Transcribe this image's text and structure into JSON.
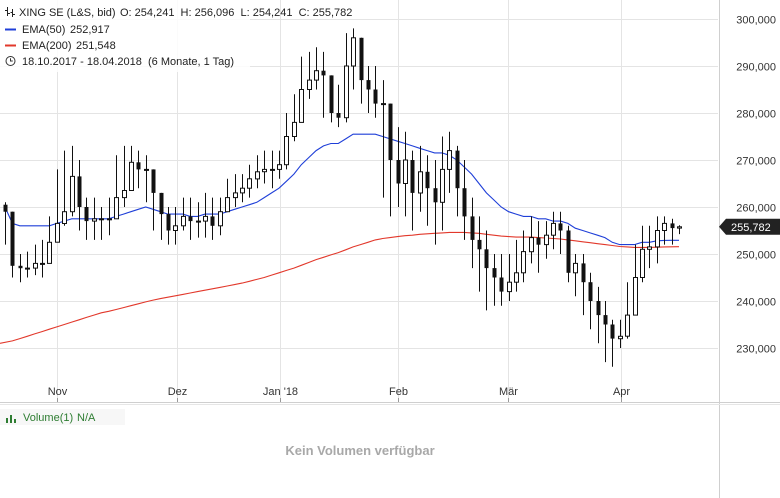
{
  "legend": {
    "instrument": "XING SE (L&S, bid)",
    "ohlc": "O: 254,241  H: 256,096  L: 254,241  C: 255,782",
    "ema50_label": "EMA(50)",
    "ema50_value": "252,917",
    "ema200_label": "EMA(200)",
    "ema200_value": "251,548",
    "range": "18.10.2017 - 18.04.2018",
    "period": "(6 Monate, 1 Tag)"
  },
  "last_price_tag": "255,782",
  "volume_panel": {
    "label": "Volume(1)",
    "value": "N/A",
    "message": "Kein Volumen verfügbar"
  },
  "colors": {
    "ema50": "#1f3fd8",
    "ema200": "#e2382b",
    "candle": "#111111",
    "grid": "#e4e4e4",
    "volume_label": "#2e7d32"
  },
  "chart_data": {
    "type": "candlestick",
    "title": "XING SE (L&S, bid)",
    "x_tick_labels": [
      "Nov",
      "Dez",
      "Jan '18",
      "Feb",
      "Mär",
      "Apr"
    ],
    "y_tick_labels": [
      "230,000",
      "240,000",
      "250,000",
      "260,000",
      "270,000",
      "280,000",
      "290,000",
      "300,000"
    ],
    "ylim": [
      222000,
      302000
    ],
    "date_range": [
      "2017-10-18",
      "2018-04-18"
    ],
    "grid": true,
    "series": [
      {
        "name": "XING SE (L&S, bid)",
        "close": [
          259000,
          247500,
          247000,
          247000,
          248000,
          248000,
          252500,
          256500,
          259000,
          266500,
          260000,
          257000,
          257500,
          257500,
          257500,
          262000,
          263500,
          269500,
          268000,
          268000,
          263000,
          258500,
          255000,
          256000,
          258000,
          257000,
          257000,
          258000,
          256000,
          259000,
          262000,
          263000,
          264000,
          266000,
          267500,
          268000,
          268000,
          269000,
          275000,
          278000,
          285000,
          287000,
          289000,
          288000,
          280000,
          279000,
          290000,
          296000,
          287000,
          285000,
          282000,
          282000,
          270000,
          265000,
          270000,
          263000,
          267500,
          264000,
          261000,
          268000,
          272000,
          264000,
          258000,
          253000,
          251000,
          247000,
          245000,
          242000,
          244000,
          246000,
          250500,
          253500,
          252000,
          254000,
          256500,
          255000,
          246000,
          248000,
          244000,
          240000,
          237000,
          235000,
          232000,
          232500,
          237000,
          245000,
          251000,
          251500,
          255000,
          256500,
          255500,
          255782
        ],
        "high": [
          261000,
          253000,
          250000,
          250500,
          252000,
          253000,
          258000,
          268000,
          272000,
          273000,
          270000,
          262000,
          262000,
          260000,
          262000,
          271000,
          273000,
          273000,
          272000,
          271000,
          266000,
          261000,
          260000,
          260000,
          262000,
          262000,
          261000,
          263000,
          262000,
          262000,
          266000,
          267000,
          267000,
          269000,
          271000,
          272000,
          272000,
          272000,
          280000,
          284000,
          292000,
          293000,
          294000,
          293000,
          288000,
          286000,
          297000,
          298000,
          296000,
          290000,
          290000,
          287000,
          281000,
          277000,
          276000,
          272000,
          273000,
          271000,
          270000,
          275000,
          276000,
          273000,
          270000,
          262000,
          258000,
          255000,
          250000,
          250000,
          250000,
          253000,
          255000,
          258000,
          257000,
          257000,
          259000,
          259000,
          256000,
          250000,
          250000,
          246000,
          243000,
          240000,
          236000,
          236000,
          244000,
          252000,
          256000,
          256000,
          258000,
          258000,
          257500,
          256096
        ],
        "low": [
          252000,
          245000,
          244000,
          245000,
          245500,
          245000,
          248000,
          254000,
          256000,
          258000,
          255000,
          253000,
          253000,
          253000,
          254000,
          259000,
          260000,
          265000,
          264000,
          261000,
          255000,
          253000,
          252000,
          252000,
          255000,
          253000,
          253500,
          253500,
          253000,
          254000,
          259000,
          260000,
          261000,
          262000,
          264000,
          265000,
          264000,
          266000,
          268000,
          274000,
          279000,
          283000,
          285000,
          279000,
          278000,
          277000,
          278000,
          285000,
          282000,
          280000,
          279000,
          262000,
          258000,
          260000,
          258000,
          255000,
          259000,
          256000,
          252000,
          255000,
          263000,
          258000,
          253000,
          247000,
          242000,
          238000,
          239000,
          239000,
          240000,
          242000,
          244000,
          248000,
          246000,
          249000,
          251000,
          250000,
          244000,
          241000,
          237000,
          234000,
          231000,
          227000,
          226000,
          230000,
          232000,
          240000,
          244000,
          247000,
          248000,
          252000,
          252000,
          254241
        ]
      },
      {
        "name": "EMA(50)",
        "values": [
          260000,
          256500,
          256000,
          256000,
          256000,
          256000,
          256000,
          256500,
          257000,
          257500,
          257500,
          257500,
          257500,
          257500,
          257500,
          258000,
          258500,
          259000,
          259500,
          260000,
          259500,
          259000,
          258500,
          258500,
          258500,
          258000,
          258000,
          258500,
          258500,
          258500,
          259000,
          259500,
          260000,
          260500,
          261000,
          262000,
          263000,
          264000,
          265500,
          267000,
          269000,
          270500,
          272000,
          273000,
          273500,
          273500,
          274500,
          275500,
          275500,
          275500,
          275500,
          275000,
          274500,
          274000,
          273500,
          273000,
          272500,
          272000,
          271500,
          271500,
          271000,
          270000,
          268500,
          267000,
          265000,
          263000,
          261500,
          260000,
          259000,
          258500,
          258000,
          258000,
          257500,
          257500,
          257000,
          257000,
          256500,
          255500,
          255000,
          254500,
          254000,
          253500,
          252500,
          252000,
          252000,
          252000,
          252500,
          252500,
          252800,
          252900,
          252917,
          252917
        ]
      },
      {
        "name": "EMA(200)",
        "values": [
          231000,
          231500,
          232000,
          232500,
          233000,
          233500,
          234000,
          234500,
          235000,
          235500,
          236000,
          236500,
          237000,
          237500,
          237800,
          238200,
          238600,
          239000,
          239400,
          239800,
          240200,
          240500,
          240800,
          241100,
          241400,
          241700,
          242000,
          242300,
          242600,
          242900,
          243200,
          243500,
          243800,
          244200,
          244600,
          245000,
          245500,
          246000,
          246500,
          247000,
          247600,
          248200,
          248800,
          249300,
          249800,
          250300,
          250900,
          251500,
          252000,
          252500,
          253000,
          253300,
          253500,
          253700,
          253900,
          254000,
          254200,
          254300,
          254400,
          254500,
          254600,
          254600,
          254600,
          254500,
          254400,
          254200,
          254000,
          253800,
          253700,
          253600,
          253600,
          253600,
          253500,
          253400,
          253300,
          253200,
          253000,
          252800,
          252600,
          252400,
          252200,
          252000,
          251800,
          251600,
          251500,
          251400,
          251400,
          251400,
          251450,
          251500,
          251540,
          251548
        ]
      }
    ]
  }
}
